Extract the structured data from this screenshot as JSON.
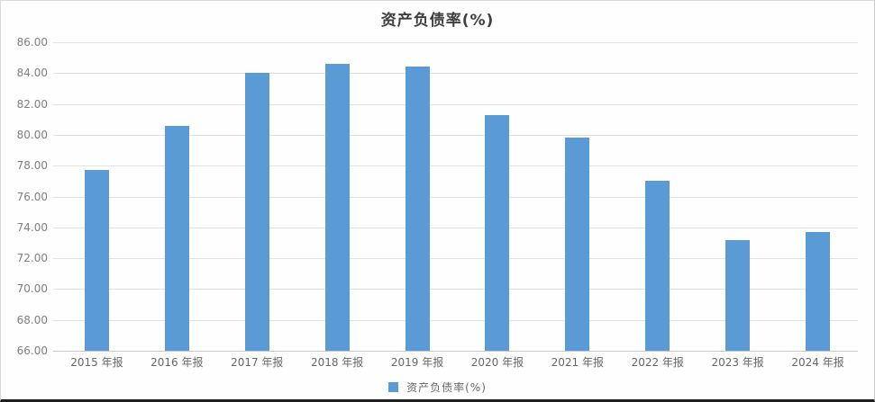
{
  "title": "资产负债率(%)",
  "legend": {
    "label": "资产负债率(%)",
    "swatch_color": "#5B9BD5"
  },
  "colors": {
    "bar": "#5B9BD5",
    "gridline": "#e2e2e2",
    "axis_line": "#c9c9c9",
    "y_label": "#7f7f7f",
    "x_label": "#686868",
    "title": "#3f3f3f"
  },
  "chart_data": {
    "type": "bar",
    "title": "资产负债率(%)",
    "categories": [
      "2015 年报",
      "2016 年报",
      "2017 年报",
      "2018 年报",
      "2019 年报",
      "2020 年报",
      "2021 年报",
      "2022 年报",
      "2023 年报",
      "2024 年报"
    ],
    "values": [
      77.7,
      80.6,
      84.0,
      84.6,
      84.4,
      81.3,
      79.8,
      77.0,
      73.2,
      73.7
    ],
    "xlabel": "",
    "ylabel": "",
    "ylim": [
      66,
      86
    ],
    "ytick_step": 2,
    "ytick_decimals": 2,
    "grid": true,
    "legend_position": "bottom",
    "legend_entries": [
      "资产负债率(%)"
    ]
  }
}
